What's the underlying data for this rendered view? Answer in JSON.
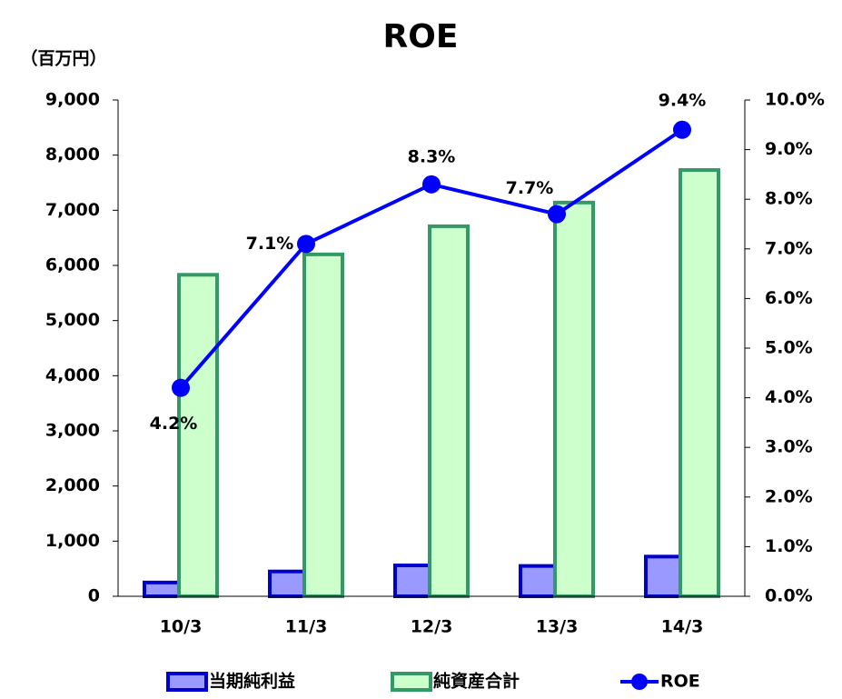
{
  "chart_data": {
    "type": "bar_line",
    "title": "ROE",
    "unit_label": "（百万円）",
    "categories": [
      "10/3",
      "11/3",
      "12/3",
      "13/3",
      "14/3"
    ],
    "series": [
      {
        "name": "当期純利益",
        "color": "#9999ff",
        "values": [
          250,
          450,
          560,
          550,
          720
        ]
      },
      {
        "name": "純資産合計",
        "color": "#ccffcc",
        "values": [
          5830,
          6200,
          6710,
          7140,
          7730
        ]
      },
      {
        "name": "ROE",
        "color": "#0000ff",
        "axis": "y2",
        "type": "line",
        "values": [
          4.2,
          7.1,
          8.3,
          7.7,
          9.4
        ],
        "value_labels": [
          "4.2%",
          "7.1%",
          "8.3%",
          "7.7%",
          "9.4%"
        ]
      }
    ],
    "ylim": [
      0,
      9000
    ],
    "yticks": [
      0,
      {
        "value": 1000,
        "label": "1,000"
      },
      {
        "value": 2000,
        "label": "2,000"
      },
      {
        "value": 3000,
        "label": "3,000"
      },
      {
        "value": 4000,
        "label": "4,000"
      },
      {
        "value": 5000,
        "label": "5,000"
      },
      {
        "value": 6000,
        "label": "6,000"
      },
      {
        "value": 7000,
        "label": "7,000"
      },
      {
        "value": 8000,
        "label": "8,000"
      },
      {
        "value": 9000,
        "label": "9,000"
      }
    ],
    "y2lim": [
      0,
      10
    ],
    "y2ticks": [
      {
        "value": 0,
        "label": "0.0%"
      },
      {
        "value": 1,
        "label": "1.0%"
      },
      {
        "value": 2,
        "label": "2.0%"
      },
      {
        "value": 3,
        "label": "3.0%"
      },
      {
        "value": 4,
        "label": "4.0%"
      },
      {
        "value": 5,
        "label": "5.0%"
      },
      {
        "value": 6,
        "label": "6.0%"
      },
      {
        "value": 7,
        "label": "7.0%"
      },
      {
        "value": 8,
        "label": "8.0%"
      },
      {
        "value": 9,
        "label": "9.0%"
      },
      {
        "value": 10,
        "label": "10.0%"
      }
    ],
    "legend": "bottom"
  }
}
